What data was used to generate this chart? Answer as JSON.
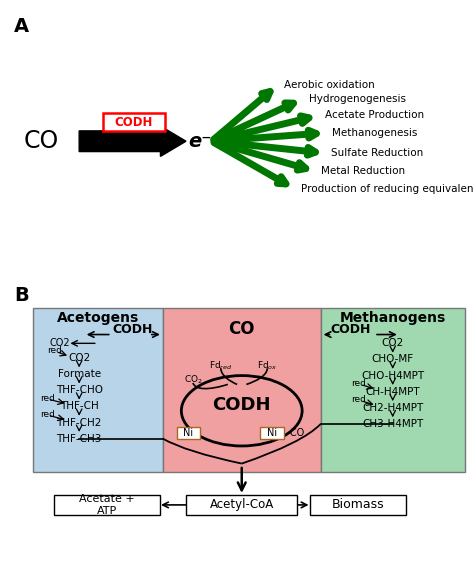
{
  "panel_a": {
    "co_label": "CO",
    "codh_label": "CODH",
    "e_label": "e⁻",
    "arrows": [
      "Aerobic oxidation",
      "Hydrogenogenesis",
      "Acetate Production",
      "Methanogenesis",
      "Sulfate Reduction",
      "Metal Reduction",
      "Production of reducing equivalence"
    ],
    "arrow_color": "#007700",
    "arrow_angles": [
      55,
      38,
      22,
      7,
      -10,
      -26,
      -44
    ]
  },
  "panel_b": {
    "acetogen_bg": "#b8d4e8",
    "central_bg": "#f0a0a0",
    "methanogen_bg": "#a0d8b0",
    "acetogen_title": "Acetogens",
    "methanogen_title": "Methanogens",
    "acetogen_items": [
      "CO2",
      "Formate",
      "THF-CHO",
      "THF-CH",
      "THF-CH2",
      "THF-CH3"
    ],
    "methanogen_items": [
      "CO2",
      "CHO-MF",
      "CHO-H4MPT",
      "CH-H4MPT",
      "CH2-H4MPT",
      "CH3-H4MPT"
    ],
    "bottom_boxes": [
      "Acetate +\nATP",
      "Acetyl-CoA",
      "Biomass"
    ]
  },
  "bg_color": "#ffffff",
  "label_a": "A",
  "label_b": "B"
}
